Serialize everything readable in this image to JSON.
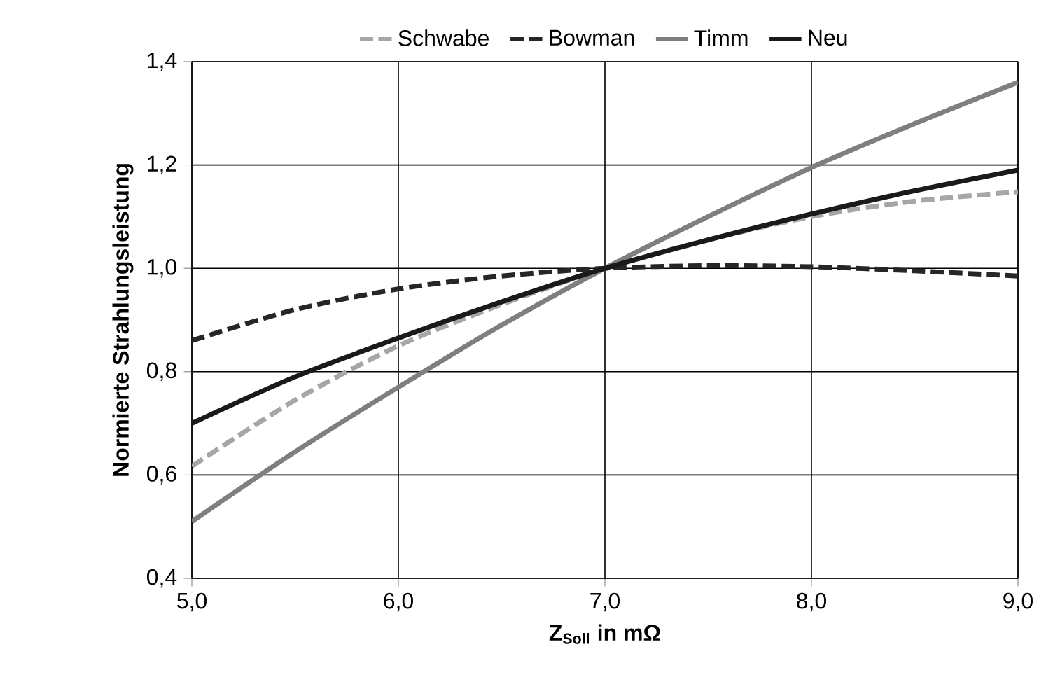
{
  "chart_data": {
    "type": "line",
    "xlabel": "Z$_{Soll}$ in mΩ",
    "ylabel": "Normierte Strahlungsleistung",
    "xlim": [
      5,
      9
    ],
    "ylim": [
      0.4,
      1.4
    ],
    "xticks": [
      {
        "value": 5,
        "label": "5,0"
      },
      {
        "value": 6,
        "label": "6,0"
      },
      {
        "value": 7,
        "label": "7,0"
      },
      {
        "value": 8,
        "label": "8,0"
      },
      {
        "value": 9,
        "label": "9,0"
      }
    ],
    "yticks": [
      {
        "value": 0.4,
        "label": "0,4"
      },
      {
        "value": 0.6,
        "label": "0,6"
      },
      {
        "value": 0.8,
        "label": "0,8"
      },
      {
        "value": 1.0,
        "label": "1,0"
      },
      {
        "value": 1.2,
        "label": "1,2"
      },
      {
        "value": 1.4,
        "label": "1,4"
      }
    ],
    "grid": true,
    "legend": "top",
    "marker": "none",
    "x": [
      5,
      5.5,
      6,
      6.5,
      7,
      7.5,
      8,
      8.5,
      9
    ],
    "series": [
      {
        "name": "Schwabe",
        "color": "#a6a6a6",
        "line_style": "dashed",
        "values": [
          0.617,
          0.745,
          0.85,
          0.93,
          1.0,
          1.055,
          1.1,
          1.13,
          1.148
        ]
      },
      {
        "name": "Bowman",
        "color": "#262626",
        "line_style": "dashed",
        "values": [
          0.86,
          0.92,
          0.96,
          0.985,
          1.0,
          1.005,
          1.003,
          0.995,
          0.985
        ]
      },
      {
        "name": "Timm",
        "color": "#7f7f7f",
        "line_style": "solid",
        "values": [
          0.51,
          0.645,
          0.77,
          0.89,
          1.0,
          1.1,
          1.195,
          1.28,
          1.36
        ]
      },
      {
        "name": "Neu",
        "color": "#1a1a1a",
        "line_style": "solid",
        "values": [
          0.7,
          0.79,
          0.865,
          0.935,
          1.0,
          1.055,
          1.105,
          1.15,
          1.19
        ]
      }
    ]
  }
}
